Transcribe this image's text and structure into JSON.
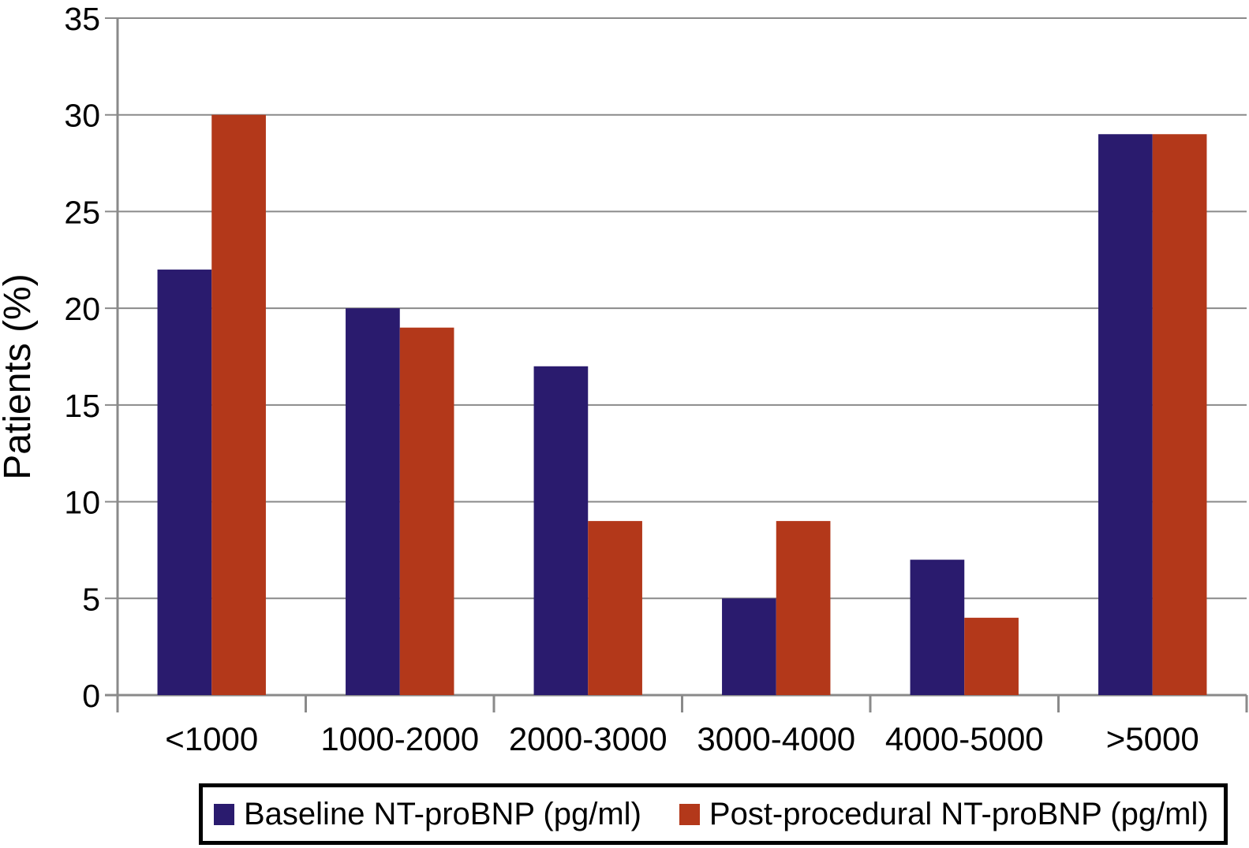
{
  "chart_data": {
    "type": "bar",
    "title": "",
    "xlabel": "",
    "ylabel": "Patients (%)",
    "categories": [
      "<1000",
      "1000-2000",
      "2000-3000",
      "3000-4000",
      "4000-5000",
      ">5000"
    ],
    "series": [
      {
        "name": "Baseline NT-proBNP (pg/ml)",
        "color": "#2A1B6E",
        "values": [
          22,
          20,
          17,
          5,
          7,
          29
        ]
      },
      {
        "name": "Post-procedural NT-proBNP (pg/ml)",
        "color": "#B3381A",
        "values": [
          30,
          19,
          9,
          9,
          4,
          29
        ]
      }
    ],
    "ylim": [
      0,
      35
    ],
    "yticks": [
      0,
      5,
      10,
      15,
      20,
      25,
      30,
      35
    ],
    "grid": true,
    "gridline_color": "#8a8a8a",
    "axis_color": "#8a8a8a",
    "text_color": "#000000",
    "legend_position": "bottom",
    "legend_border_color": "#000000"
  }
}
